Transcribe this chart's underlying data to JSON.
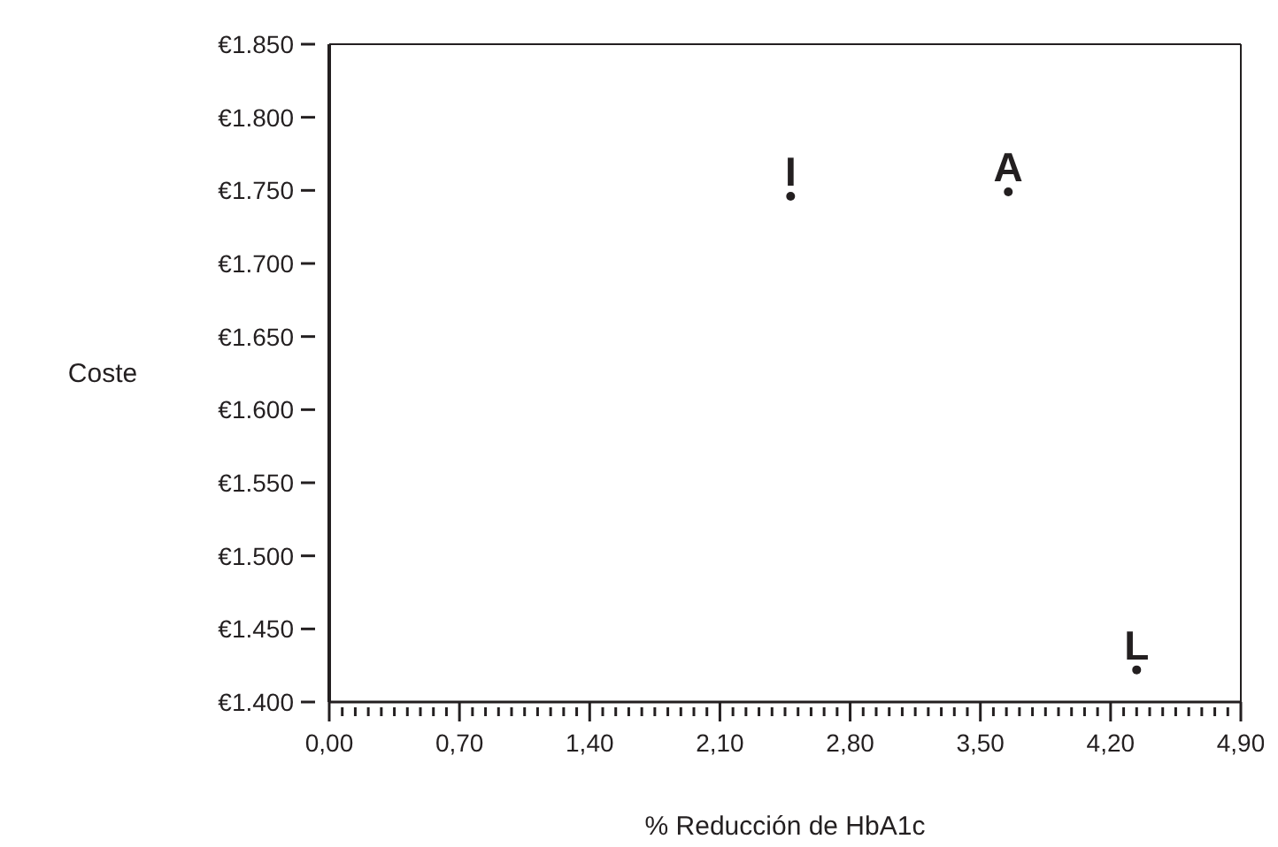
{
  "chart_data": {
    "type": "scatter",
    "xlabel": "% Reducción de HbA1c",
    "ylabel": "Coste",
    "series": [
      {
        "name": "I",
        "color": "#231f20",
        "x": [
          2.48
        ],
        "values": [
          1746
        ]
      },
      {
        "name": "A",
        "color": "#231f20",
        "x": [
          3.65
        ],
        "values": [
          1749
        ]
      },
      {
        "name": "L",
        "color": "#231f20",
        "x": [
          4.34
        ],
        "values": [
          1422
        ]
      }
    ],
    "marker": "circle",
    "xlim": [
      0,
      4.9
    ],
    "ylim": [
      1400,
      1850
    ],
    "xticks": [
      {
        "value": 0,
        "label": "0,00"
      },
      {
        "value": 0.07,
        "label": null
      },
      {
        "value": 0.14,
        "label": null
      },
      {
        "value": 0.21,
        "label": null
      },
      {
        "value": 0.28,
        "label": null
      },
      {
        "value": 0.35,
        "label": null
      },
      {
        "value": 0.42,
        "label": null
      },
      {
        "value": 0.49,
        "label": null
      },
      {
        "value": 0.56,
        "label": null
      },
      {
        "value": 0.63,
        "label": null
      },
      {
        "value": 0.7,
        "label": "0,70"
      },
      {
        "value": 0.77,
        "label": null
      },
      {
        "value": 0.84,
        "label": null
      },
      {
        "value": 0.91,
        "label": null
      },
      {
        "value": 0.98,
        "label": null
      },
      {
        "value": 1.05,
        "label": null
      },
      {
        "value": 1.12,
        "label": null
      },
      {
        "value": 1.19,
        "label": null
      },
      {
        "value": 1.26,
        "label": null
      },
      {
        "value": 1.33,
        "label": null
      },
      {
        "value": 1.4,
        "label": "1,40"
      },
      {
        "value": 1.47,
        "label": null
      },
      {
        "value": 1.54,
        "label": null
      },
      {
        "value": 1.61,
        "label": null
      },
      {
        "value": 1.68,
        "label": null
      },
      {
        "value": 1.75,
        "label": null
      },
      {
        "value": 1.82,
        "label": null
      },
      {
        "value": 1.89,
        "label": null
      },
      {
        "value": 1.96,
        "label": null
      },
      {
        "value": 2.03,
        "label": null
      },
      {
        "value": 2.1,
        "label": "2,10"
      },
      {
        "value": 2.17,
        "label": null
      },
      {
        "value": 2.24,
        "label": null
      },
      {
        "value": 2.31,
        "label": null
      },
      {
        "value": 2.38,
        "label": null
      },
      {
        "value": 2.45,
        "label": null
      },
      {
        "value": 2.52,
        "label": null
      },
      {
        "value": 2.59,
        "label": null
      },
      {
        "value": 2.66,
        "label": null
      },
      {
        "value": 2.73,
        "label": null
      },
      {
        "value": 2.8,
        "label": "2,80"
      },
      {
        "value": 2.87,
        "label": null
      },
      {
        "value": 2.94,
        "label": null
      },
      {
        "value": 3.01,
        "label": null
      },
      {
        "value": 3.08,
        "label": null
      },
      {
        "value": 3.15,
        "label": null
      },
      {
        "value": 3.22,
        "label": null
      },
      {
        "value": 3.29,
        "label": null
      },
      {
        "value": 3.36,
        "label": null
      },
      {
        "value": 3.43,
        "label": null
      },
      {
        "value": 3.5,
        "label": "3,50"
      },
      {
        "value": 3.57,
        "label": null
      },
      {
        "value": 3.64,
        "label": null
      },
      {
        "value": 3.71,
        "label": null
      },
      {
        "value": 3.78,
        "label": null
      },
      {
        "value": 3.85,
        "label": null
      },
      {
        "value": 3.92,
        "label": null
      },
      {
        "value": 3.99,
        "label": null
      },
      {
        "value": 4.06,
        "label": null
      },
      {
        "value": 4.13,
        "label": null
      },
      {
        "value": 4.2,
        "label": "4,20"
      },
      {
        "value": 4.27,
        "label": null
      },
      {
        "value": 4.34,
        "label": null
      },
      {
        "value": 4.41,
        "label": null
      },
      {
        "value": 4.48,
        "label": null
      },
      {
        "value": 4.55,
        "label": null
      },
      {
        "value": 4.62,
        "label": null
      },
      {
        "value": 4.69,
        "label": null
      },
      {
        "value": 4.76,
        "label": null
      },
      {
        "value": 4.83,
        "label": null
      },
      {
        "value": 4.9,
        "label": "4,90"
      }
    ],
    "yticks": [
      {
        "value": 1400,
        "label": "€1.400"
      },
      {
        "value": 1450,
        "label": "€1.450"
      },
      {
        "value": 1500,
        "label": "€1.500"
      },
      {
        "value": 1550,
        "label": "€1.550"
      },
      {
        "value": 1600,
        "label": "€1.600"
      },
      {
        "value": 1650,
        "label": "€1.650"
      },
      {
        "value": 1700,
        "label": "€1.700"
      },
      {
        "value": 1750,
        "label": "€1.750"
      },
      {
        "value": 1800,
        "label": "€1.800"
      },
      {
        "value": 1850,
        "label": "€1.850"
      }
    ]
  }
}
